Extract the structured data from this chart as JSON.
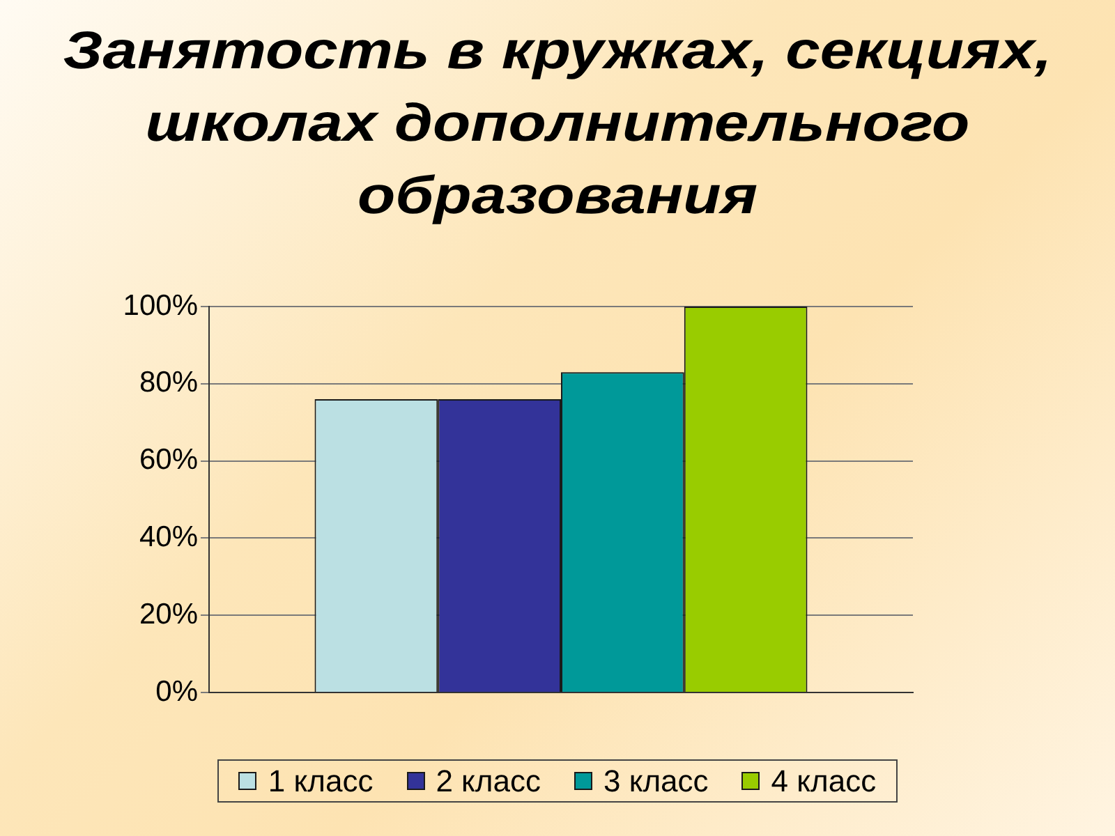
{
  "chart_data": {
    "type": "bar",
    "title": "Занятость в кружках, секциях, школах дополнительного образования",
    "categories": [
      null
    ],
    "series": [
      {
        "name": "1 класс",
        "color": "#bbe0e3",
        "values": [
          76
        ]
      },
      {
        "name": "2 класс",
        "color": "#333399",
        "values": [
          76
        ]
      },
      {
        "name": "3 класс",
        "color": "#009999",
        "values": [
          83
        ]
      },
      {
        "name": "4 класс",
        "color": "#99cc00",
        "values": [
          100
        ]
      }
    ],
    "ylim": [
      0,
      100
    ],
    "yticks": [
      {
        "value": 0,
        "label": "0%"
      },
      {
        "value": 20,
        "label": "20%"
      },
      {
        "value": 40,
        "label": "40%"
      },
      {
        "value": 60,
        "label": "60%"
      },
      {
        "value": 80,
        "label": "80%"
      },
      {
        "value": 100,
        "label": "100%"
      }
    ],
    "grid": "y",
    "legend": "bottom"
  }
}
